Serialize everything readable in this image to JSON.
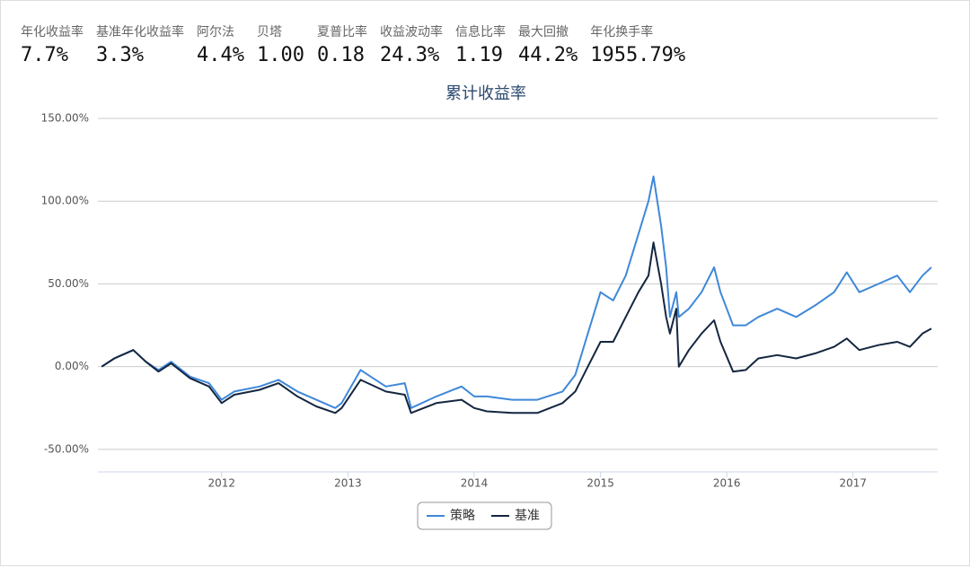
{
  "metrics": [
    {
      "label": "年化收益率",
      "value": "7.7%"
    },
    {
      "label": "基准年化收益率",
      "value": "3.3%"
    },
    {
      "label": "阿尔法",
      "value": "4.4%"
    },
    {
      "label": "贝塔",
      "value": "1.00"
    },
    {
      "label": "夏普比率",
      "value": "0.18"
    },
    {
      "label": "收益波动率",
      "value": "24.3%"
    },
    {
      "label": "信息比率",
      "value": "1.19"
    },
    {
      "label": "最大回撤",
      "value": "44.2%"
    },
    {
      "label": "年化换手率",
      "value": "1955.79%"
    }
  ],
  "chart_data": {
    "type": "line",
    "title": "累计收益率",
    "x": [
      2011.05,
      2011.15,
      2011.3,
      2011.4,
      2011.5,
      2011.6,
      2011.75,
      2011.9,
      2012.0,
      2012.1,
      2012.3,
      2012.45,
      2012.6,
      2012.75,
      2012.9,
      2012.95,
      2013.1,
      2013.3,
      2013.45,
      2013.5,
      2013.7,
      2013.9,
      2014.0,
      2014.1,
      2014.3,
      2014.5,
      2014.7,
      2014.8,
      2014.9,
      2015.0,
      2015.1,
      2015.2,
      2015.3,
      2015.38,
      2015.42,
      2015.48,
      2015.52,
      2015.55,
      2015.6,
      2015.62,
      2015.7,
      2015.8,
      2015.9,
      2015.95,
      2016.05,
      2016.15,
      2016.25,
      2016.4,
      2016.55,
      2016.7,
      2016.85,
      2016.95,
      2017.05,
      2017.2,
      2017.35,
      2017.45,
      2017.55,
      2017.62
    ],
    "series": [
      {
        "name": "策略",
        "color": "#3f88d8",
        "values": [
          0,
          5,
          10,
          3,
          -2,
          3,
          -6,
          -10,
          -20,
          -15,
          -12,
          -8,
          -15,
          -20,
          -25,
          -22,
          -2,
          -12,
          -10,
          -25,
          -18,
          -12,
          -18,
          -18,
          -20,
          -20,
          -15,
          -5,
          20,
          45,
          40,
          55,
          80,
          100,
          115,
          85,
          60,
          30,
          45,
          30,
          35,
          45,
          60,
          45,
          25,
          25,
          30,
          35,
          30,
          37,
          45,
          57,
          45,
          50,
          55,
          45,
          55,
          60
        ]
      },
      {
        "name": "基准",
        "color": "#142640",
        "values": [
          0,
          5,
          10,
          3,
          -3,
          2,
          -7,
          -12,
          -22,
          -17,
          -14,
          -10,
          -18,
          -24,
          -28,
          -25,
          -8,
          -15,
          -17,
          -28,
          -22,
          -20,
          -25,
          -27,
          -28,
          -28,
          -22,
          -15,
          0,
          15,
          15,
          30,
          45,
          55,
          75,
          50,
          30,
          20,
          35,
          0,
          10,
          20,
          28,
          15,
          -3,
          -2,
          5,
          7,
          5,
          8,
          12,
          17,
          10,
          13,
          15,
          12,
          20,
          23
        ]
      }
    ],
    "xlim": [
      2011.02,
      2017.67
    ],
    "xticks": [
      2012,
      2013,
      2014,
      2015,
      2016,
      2017
    ],
    "ylim": [
      -63.6,
      150
    ],
    "yticks": [
      {
        "value": -50,
        "label": "-50.00%"
      },
      {
        "value": 0,
        "label": "0.00%"
      },
      {
        "value": 50,
        "label": "50.00%"
      },
      {
        "value": 100,
        "label": "100.00%"
      },
      {
        "value": 150,
        "label": "150.00%"
      }
    ],
    "grid": true
  }
}
